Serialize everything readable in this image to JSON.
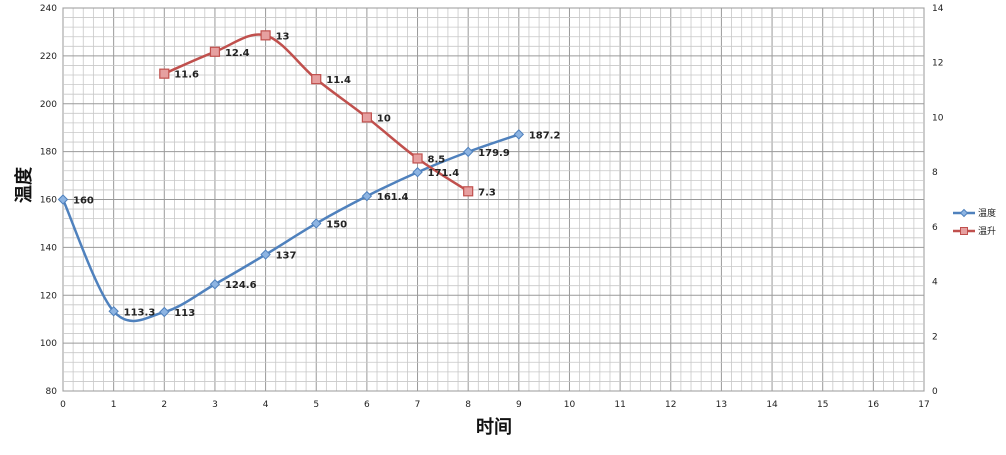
{
  "chart_data": {
    "type": "line",
    "xlabel": "时间",
    "ylabel": "温度",
    "x_ticks": [
      0,
      1,
      2,
      3,
      4,
      5,
      6,
      7,
      8,
      9,
      10,
      11,
      12,
      13,
      14,
      15,
      16,
      17
    ],
    "xlim": [
      0,
      17
    ],
    "ylim": [
      80,
      240
    ],
    "y_ticks": [
      80,
      100,
      120,
      140,
      160,
      180,
      200,
      220,
      240
    ],
    "y2lim": [
      0,
      14
    ],
    "y2_ticks": [
      0,
      2,
      4,
      6,
      8,
      10,
      12,
      14
    ],
    "grid": true,
    "legend_position": "right",
    "series": [
      {
        "name": "温度",
        "axis": "left",
        "color": "#4F81BD",
        "marker": "diamond",
        "smooth": true,
        "x": [
          0,
          1,
          2,
          3,
          4,
          5,
          6,
          7,
          8,
          9
        ],
        "values": [
          160,
          113.3,
          113,
          124.6,
          137,
          150,
          161.4,
          171.4,
          179.9,
          187.2
        ],
        "labels": [
          "160",
          "113.3",
          "113",
          "124.6",
          "137",
          "150",
          "161.4",
          "171.4",
          "179.9",
          "187.2"
        ]
      },
      {
        "name": "温升",
        "axis": "right",
        "color": "#C0504D",
        "marker": "square",
        "smooth": true,
        "x": [
          2,
          3,
          4,
          5,
          6,
          7,
          8
        ],
        "values": [
          11.6,
          12.4,
          13,
          11.4,
          10,
          8.5,
          7.3
        ],
        "labels": [
          "11.6",
          "12.4",
          "13",
          "11.4",
          "10",
          "8.5",
          "7.3"
        ]
      }
    ]
  }
}
